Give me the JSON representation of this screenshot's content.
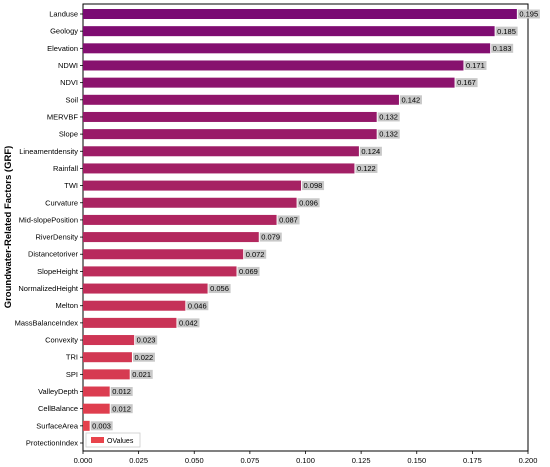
{
  "chart_data": {
    "type": "bar",
    "orientation": "horizontal",
    "ylabel": "Groundwater-Related Factors (GRF)",
    "xlabel": "",
    "xlim": [
      0,
      0.2
    ],
    "xticks": [
      "0.000",
      "0.025",
      "0.050",
      "0.075",
      "0.100",
      "0.125",
      "0.150",
      "0.175",
      "0.200"
    ],
    "legend": {
      "label": "OValues",
      "position": "bottom-left"
    },
    "color_start": "#e8434b",
    "color_end": "#7a0a73",
    "label_box_color": "#c8c8c8",
    "categories": [
      "Landuse",
      "Geology",
      "Elevation",
      "NDWI",
      "NDVI",
      "Soil",
      "MERVBF",
      "Slope",
      "Lineamentdensity",
      "Rainfall",
      "TWI",
      "Curvature",
      "Mid-slopePosition",
      "RiverDensity",
      "Distancetoriver",
      "SlopeHeight",
      "NormalizedHeight",
      "Melton",
      "MassBalanceIndex",
      "Convexity",
      "TRI",
      "SPI",
      "ValleyDepth",
      "CellBalance",
      "SurfaceArea",
      "ProtectionIndex"
    ],
    "values": [
      0.195,
      0.185,
      0.183,
      0.171,
      0.167,
      0.142,
      0.132,
      0.132,
      0.124,
      0.122,
      0.098,
      0.096,
      0.087,
      0.079,
      0.072,
      0.069,
      0.056,
      0.046,
      0.042,
      0.023,
      0.022,
      0.021,
      0.012,
      0.012,
      0.003,
      0.0
    ],
    "value_labels": [
      "0.195",
      "0.185",
      "0.183",
      "0.171",
      "0.167",
      "0.142",
      "0.132",
      "0.132",
      "0.124",
      "0.122",
      "0.098",
      "0.096",
      "0.087",
      "0.079",
      "0.072",
      "0.069",
      "0.056",
      "0.046",
      "0.042",
      "0.023",
      "0.022",
      "0.021",
      "0.012",
      "0.012",
      "0.003",
      ""
    ]
  }
}
